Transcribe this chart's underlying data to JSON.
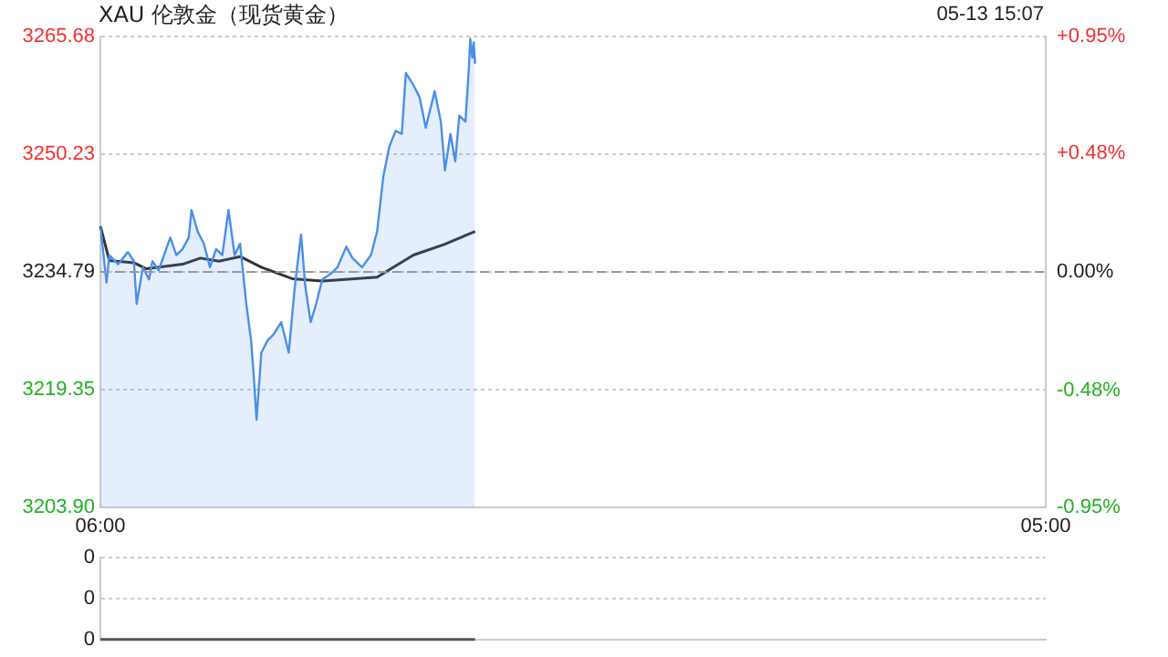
{
  "chart_data": [
    {
      "type": "area",
      "title": "XAU 伦敦金（现货黄金）",
      "subtitle": "05-13 15:07",
      "xlim": [
        "--05-13T06:00",
        "--05-14T05:00"
      ],
      "xticks": [
        {
          "value": "--05-13T06:00",
          "label": "06:00"
        },
        {
          "value": "--05-14T05:00",
          "label": "05:00"
        }
      ],
      "ylim": [
        3203.9,
        3265.68
      ],
      "yticks": [
        {
          "value": 3203.9,
          "label": "3203.90"
        },
        {
          "value": 3219.35,
          "label": "3219.35"
        },
        {
          "value": 3234.79,
          "label": "3234.79"
        },
        {
          "value": 3250.23,
          "label": "3250.23"
        },
        {
          "value": 3265.68,
          "label": "3265.68"
        }
      ],
      "y2lim": [
        -0.95,
        0.95
      ],
      "y2ticks": [
        {
          "value": -0.95,
          "label": "-0.95%"
        },
        {
          "value": -0.48,
          "label": "-0.48%"
        },
        {
          "value": 0,
          "label": "0.00%"
        },
        {
          "value": 0.48,
          "label": "+0.48%"
        },
        {
          "value": 0.95,
          "label": "+0.95%"
        }
      ],
      "grid": "y",
      "legend": false,
      "marker": "none",
      "ref_lines": [
        {
          "axis": "y2",
          "value": 0,
          "color": "#999999",
          "line_style": "dashed"
        }
      ],
      "series": [
        {
          "color": "#4a8fe8",
          "x": [
            "--05-13T06:00",
            "--05-13T06:09",
            "--05-13T06:13",
            "--05-13T06:26",
            "--05-13T06:40",
            "--05-13T06:49",
            "--05-13T06:53",
            "--05-13T07:02",
            "--05-13T07:11",
            "--05-13T07:16",
            "--05-13T07:25",
            "--05-13T07:33",
            "--05-13T07:42",
            "--05-13T07:51",
            "--05-13T08:00",
            "--05-13T08:09",
            "--05-13T08:13",
            "--05-13T08:22",
            "--05-13T08:31",
            "--05-13T08:40",
            "--05-13T08:49",
            "--05-13T08:58",
            "--05-13T09:07",
            "--05-13T09:16",
            "--05-13T09:24",
            "--05-13T09:33",
            "--05-13T09:40",
            "--05-13T09:44",
            "--05-13T09:48",
            "--05-13T09:55",
            "--05-13T10:04",
            "--05-13T10:13",
            "--05-13T10:24",
            "--05-13T10:35",
            "--05-13T10:44",
            "--05-13T10:53",
            "--05-13T10:59",
            "--05-13T11:07",
            "--05-13T11:15",
            "--05-13T11:24",
            "--05-13T11:37",
            "--05-13T11:46",
            "--05-13T11:59",
            "--05-13T12:08",
            "--05-13T12:22",
            "--05-13T12:35",
            "--05-13T12:44",
            "--05-13T12:53",
            "--05-13T13:02",
            "--05-13T13:11",
            "--05-13T13:20",
            "--05-13T13:26",
            "--05-13T13:37",
            "--05-13T13:46",
            "--05-13T13:55",
            "--05-13T14:08",
            "--05-13T14:17",
            "--05-13T14:23",
            "--05-13T14:31",
            "--05-13T14:38",
            "--05-13T14:44",
            "--05-13T14:53",
            "--05-13T14:58",
            "--05-13T15:00",
            "--05-13T15:03",
            "--05-13T15:05",
            "--05-13T15:07"
          ],
          "values": [
            3240.8,
            3233.4,
            3237.0,
            3235.8,
            3237.4,
            3236.2,
            3230.6,
            3235.4,
            3233.8,
            3236.2,
            3235.0,
            3237.0,
            3239.3,
            3237.0,
            3237.8,
            3239.3,
            3242.9,
            3240.1,
            3238.5,
            3235.4,
            3237.8,
            3237.0,
            3242.9,
            3237.0,
            3238.5,
            3230.6,
            3225.8,
            3221.0,
            3215.4,
            3224.2,
            3225.8,
            3226.6,
            3228.2,
            3224.2,
            3233.0,
            3239.7,
            3233.0,
            3228.2,
            3230.6,
            3233.8,
            3234.6,
            3235.4,
            3238.1,
            3236.6,
            3235.4,
            3237.0,
            3240.1,
            3247.3,
            3251.3,
            3253.3,
            3252.9,
            3260.9,
            3259.3,
            3257.7,
            3253.7,
            3258.5,
            3254.5,
            3248.1,
            3252.9,
            3249.3,
            3255.3,
            3254.5,
            3261.7,
            3265.4,
            3262.9,
            3264.9,
            3262.1
          ]
        },
        {
          "type": "line",
          "color": "#333333",
          "x": [
            "--05-13T06:00",
            "--05-13T06:13",
            "--05-13T06:49",
            "--05-13T07:07",
            "--05-13T08:00",
            "--05-13T08:26",
            "--05-13T08:53",
            "--05-13T09:24",
            "--05-13T09:55",
            "--05-13T10:40",
            "--05-13T11:24",
            "--05-13T12:44",
            "--05-13T13:37",
            "--05-13T14:22",
            "--05-13T15:07"
          ],
          "values": [
            3240.8,
            3236.3,
            3236.0,
            3235.2,
            3235.8,
            3236.6,
            3236.2,
            3236.8,
            3235.4,
            3233.9,
            3233.6,
            3234.1,
            3237.0,
            3238.4,
            3240.1
          ]
        }
      ]
    },
    {
      "type": "line",
      "xlim": [
        "--05-13T06:00",
        "--05-14T05:00"
      ],
      "ylim": [
        0,
        0.2
      ],
      "yticks": [
        {
          "value": 0,
          "label": "0"
        },
        {
          "value": 0.1,
          "label": "0"
        },
        {
          "value": 0.2,
          "label": "0"
        }
      ],
      "grid": "y",
      "legend": false,
      "marker": "none",
      "tick_labels": "y",
      "series": [
        {
          "color": "#555555",
          "x": [
            "--05-13T06:00",
            "--05-13T15:07"
          ],
          "values": [
            0,
            0
          ]
        }
      ]
    }
  ]
}
